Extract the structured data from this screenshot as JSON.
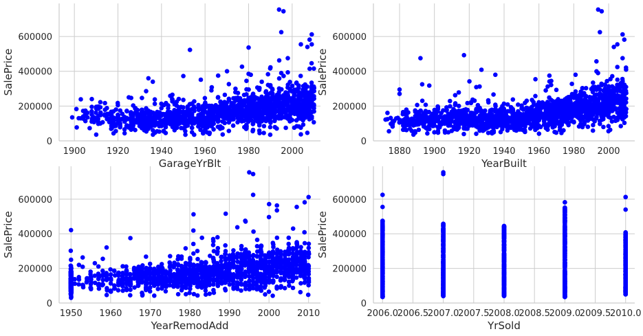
{
  "chart_data": [
    {
      "type": "scatter",
      "xlabel": "GarageYrBlt",
      "ylabel": "SalePrice",
      "xlim": [
        1893,
        2013
      ],
      "ylim": [
        0,
        790000
      ],
      "xticks": [
        1900,
        1920,
        1940,
        1960,
        1980,
        2000
      ],
      "xtick_labels": [
        "1900",
        "1920",
        "1940",
        "1960",
        "1980",
        "2000"
      ],
      "yticks": [
        0,
        200000,
        400000,
        600000
      ],
      "ytick_labels": [
        "0",
        "200000",
        "400000",
        "600000"
      ],
      "grid": true,
      "color": "#0000ff",
      "trend": [
        [
          1900,
          135000
        ],
        [
          1920,
          120000
        ],
        [
          1940,
          125000
        ],
        [
          1960,
          140000
        ],
        [
          1980,
          175000
        ],
        [
          2000,
          205000
        ],
        [
          2010,
          230000
        ]
      ],
      "outliers": [
        [
          1994,
          755000
        ],
        [
          1996,
          745000
        ],
        [
          1995,
          625000
        ],
        [
          2009,
          612000
        ],
        [
          2008,
          582000
        ],
        [
          2004,
          555000
        ],
        [
          2009,
          555000
        ],
        [
          2007,
          540000
        ],
        [
          1998,
          475000
        ],
        [
          1980,
          385000
        ],
        [
          1981,
          380000
        ],
        [
          1966,
          375000
        ],
        [
          1934,
          360000
        ],
        [
          1936,
          340000
        ],
        [
          1990,
          320000
        ],
        [
          1925,
          250000
        ],
        [
          1908,
          240000
        ],
        [
          1899,
          135000
        ],
        [
          1906,
          135000
        ],
        [
          1947,
          75000
        ],
        [
          1955,
          35000
        ],
        [
          1962,
          40000
        ]
      ],
      "n_points": 1379,
      "seed": 11
    },
    {
      "type": "scatter",
      "xlabel": "YearBuilt",
      "ylabel": "SalePrice",
      "xlim": [
        1865,
        2015
      ],
      "ylim": [
        0,
        790000
      ],
      "xticks": [
        1880,
        1900,
        1920,
        1940,
        1960,
        1980,
        2000
      ],
      "xtick_labels": [
        "1880",
        "1900",
        "1920",
        "1940",
        "1960",
        "1980",
        "2000"
      ],
      "yticks": [
        0,
        200000,
        400000,
        600000
      ],
      "ytick_labels": [
        "0",
        "200000",
        "400000",
        "600000"
      ],
      "grid": true,
      "color": "#0000ff",
      "trend": [
        [
          1872,
          110000
        ],
        [
          1890,
          120000
        ],
        [
          1910,
          125000
        ],
        [
          1930,
          125000
        ],
        [
          1950,
          125000
        ],
        [
          1965,
          150000
        ],
        [
          1980,
          180000
        ],
        [
          2000,
          215000
        ],
        [
          2010,
          235000
        ]
      ],
      "outliers": [
        [
          1872,
          122000
        ],
        [
          1875,
          98000
        ],
        [
          1880,
          295000
        ],
        [
          1880,
          270000
        ],
        [
          1882,
          165000
        ],
        [
          1885,
          125000
        ],
        [
          1885,
          92000
        ],
        [
          1890,
          155000
        ],
        [
          1892,
          475000
        ],
        [
          1893,
          325000
        ],
        [
          1898,
          105000
        ],
        [
          1900,
          160000
        ],
        [
          1994,
          755000
        ],
        [
          1996,
          745000
        ],
        [
          1995,
          625000
        ],
        [
          2008,
          612000
        ],
        [
          2009,
          582000
        ],
        [
          2005,
          555000
        ],
        [
          2003,
          540000
        ],
        [
          2008,
          475000
        ],
        [
          1935,
          380000
        ],
        [
          1966,
          375000
        ],
        [
          1981,
          380000
        ],
        [
          2007,
          85000
        ]
      ],
      "n_points": 1460,
      "seed": 23
    },
    {
      "type": "scatter",
      "xlabel": "YearRemodAdd",
      "ylabel": "SalePrice",
      "xlim": [
        1947,
        2013
      ],
      "ylim": [
        0,
        790000
      ],
      "xticks": [
        1950,
        1960,
        1970,
        1980,
        1990,
        2000,
        2010
      ],
      "xtick_labels": [
        "1950",
        "1960",
        "1970",
        "1980",
        "1990",
        "2000",
        "2010"
      ],
      "yticks": [
        0,
        200000,
        400000,
        600000
      ],
      "ytick_labels": [
        "0",
        "200000",
        "400000",
        "600000"
      ],
      "grid": true,
      "color": "#0000ff",
      "trend": [
        [
          1950,
          120000
        ],
        [
          1960,
          130000
        ],
        [
          1970,
          140000
        ],
        [
          1980,
          155000
        ],
        [
          1990,
          185000
        ],
        [
          2000,
          200000
        ],
        [
          2010,
          220000
        ]
      ],
      "outliers": [
        [
          1995,
          755000
        ],
        [
          1996,
          745000
        ],
        [
          1996,
          625000
        ],
        [
          2010,
          612000
        ],
        [
          2009,
          582000
        ],
        [
          2002,
          535000
        ],
        [
          2007,
          555000
        ],
        [
          1994,
          475000
        ],
        [
          1965,
          375000
        ],
        [
          1987,
          380000
        ],
        [
          1950,
          250000
        ],
        [
          1950,
          30000
        ],
        [
          1952,
          220000
        ]
      ],
      "n_points": 1460,
      "seed": 37
    },
    {
      "type": "scatter",
      "xlabel": "YrSold",
      "ylabel": "SalePrice",
      "xlim": [
        2005.85,
        2010.15
      ],
      "ylim": [
        0,
        790000
      ],
      "xticks": [
        2006.0,
        2006.5,
        2007.0,
        2007.5,
        2008.0,
        2008.5,
        2009.0,
        2009.5,
        2010.0
      ],
      "xtick_labels": [
        "2006.0",
        "2006.5",
        "2007.0",
        "2007.5",
        "2008.0",
        "2008.5",
        "2009.0",
        "2009.5",
        "2010.0"
      ],
      "yticks": [
        0,
        200000,
        400000,
        600000
      ],
      "ytick_labels": [
        "0",
        "200000",
        "400000",
        "600000"
      ],
      "grid": true,
      "color": "#0000ff",
      "columns": [
        {
          "x": 2006.0,
          "min": 35000,
          "max": 625000,
          "dense_max": 475000
        },
        {
          "x": 2007.0,
          "min": 40000,
          "max": 755000,
          "dense_max": 460000
        },
        {
          "x": 2008.0,
          "min": 40000,
          "max": 445000,
          "dense_max": 445000
        },
        {
          "x": 2009.0,
          "min": 35000,
          "max": 582000,
          "dense_max": 560000
        },
        {
          "x": 2010.0,
          "min": 50000,
          "max": 612000,
          "dense_max": 410000
        }
      ],
      "extra_points": [
        [
          2007.0,
          745000
        ],
        [
          2006.0,
          555000
        ],
        [
          2009.0,
          582000
        ],
        [
          2010.0,
          612000
        ],
        [
          2010.0,
          540000
        ]
      ],
      "n_points": 1460,
      "seed": 51
    }
  ]
}
